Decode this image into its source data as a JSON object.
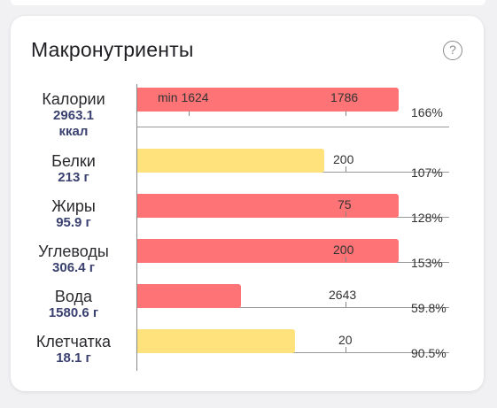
{
  "card": {
    "title": "Макронутриенты",
    "help_symbol": "?"
  },
  "colors": {
    "over": "#fe7375",
    "near": "#ffe27c"
  },
  "rows": [
    {
      "name": "Калории",
      "value_line1": "2963.1",
      "value_line2": "ккал",
      "bar_fill": 1.0,
      "bar_color": "over",
      "target_label": "1786",
      "min_label": "min 1624",
      "percent": "166%"
    },
    {
      "name": "Белки",
      "value_line1": "213 г",
      "bar_fill": 0.714,
      "bar_color": "near",
      "target_label": "200",
      "percent": "107%"
    },
    {
      "name": "Жиры",
      "value_line1": "95.9 г",
      "bar_fill": 1.0,
      "bar_color": "over",
      "target_label": "75",
      "percent": "128%"
    },
    {
      "name": "Углеводы",
      "value_line1": "306.4 г",
      "bar_fill": 1.0,
      "bar_color": "over",
      "target_label": "200",
      "percent": "153%"
    },
    {
      "name": "Вода",
      "value_line1": "1580.6 г",
      "bar_fill": 0.398,
      "bar_color": "over",
      "target_label": "2643",
      "percent": "59.8%"
    },
    {
      "name": "Клетчатка",
      "value_line1": "18.1 г",
      "bar_fill": 0.602,
      "bar_color": "near",
      "target_label": "20",
      "percent": "90.5%"
    }
  ]
}
